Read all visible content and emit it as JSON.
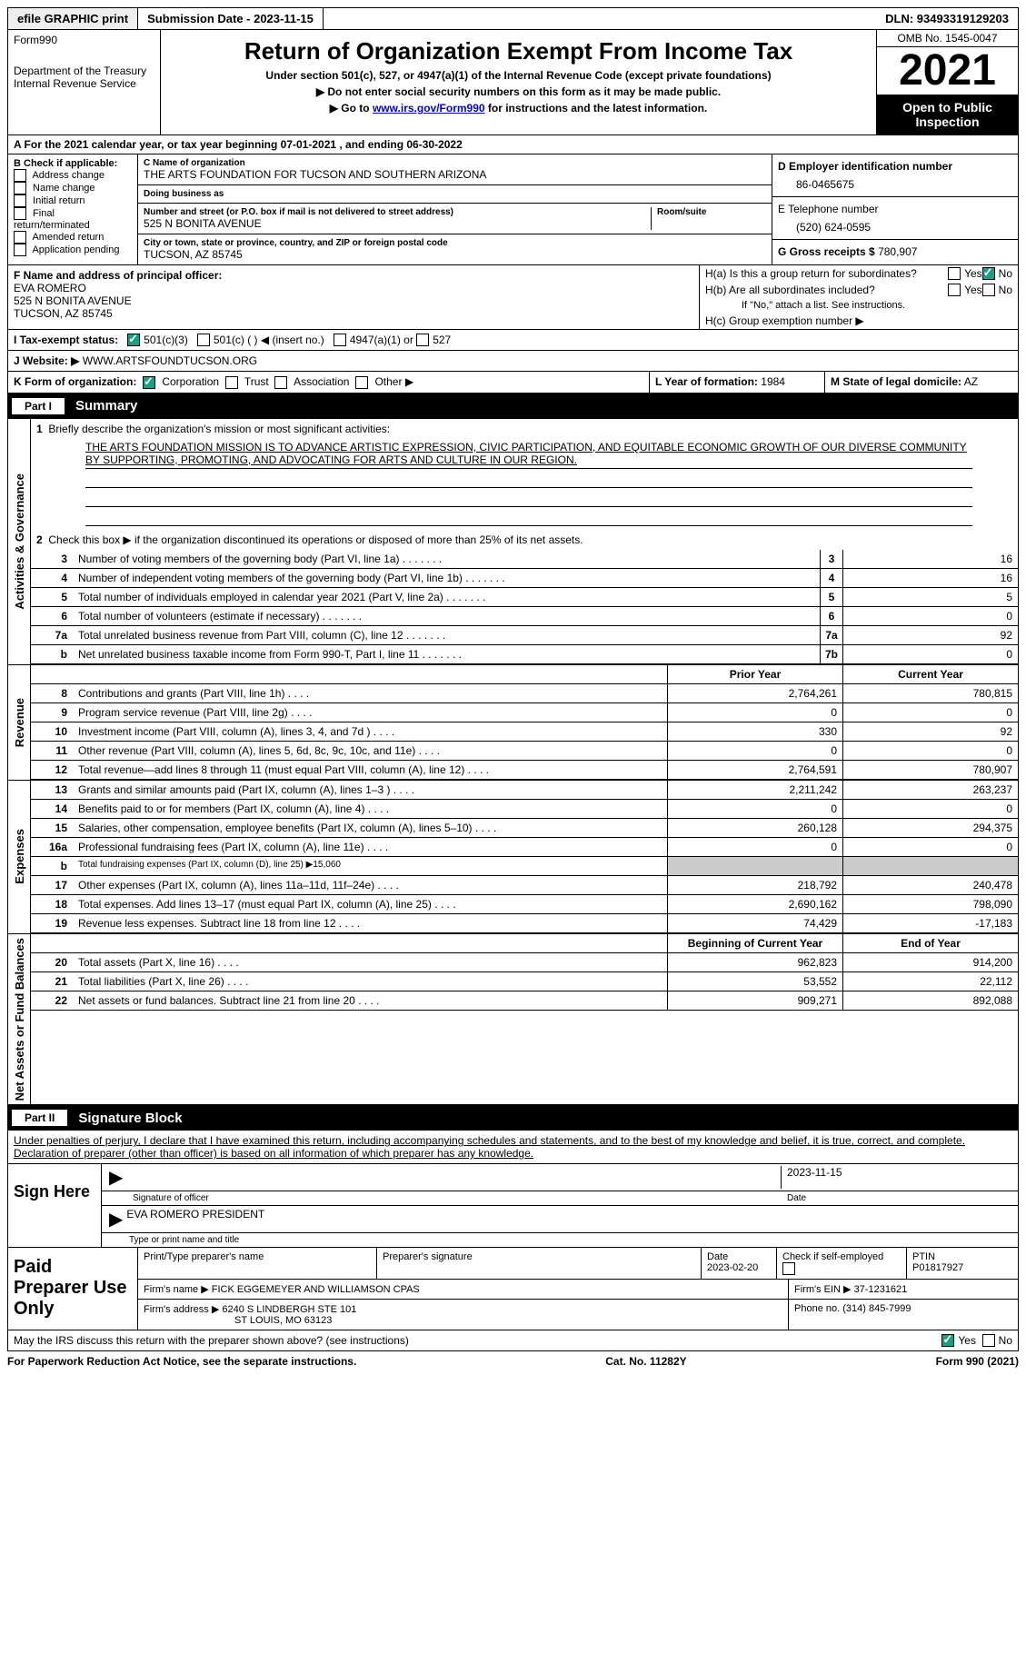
{
  "topbar": {
    "efile": "efile GRAPHIC print",
    "submission": "Submission Date - 2023-11-15",
    "dln": "DLN: 93493319129203"
  },
  "header": {
    "form_prefix": "Form",
    "form_num": "990",
    "dept": "Department of the Treasury",
    "irs": "Internal Revenue Service",
    "title": "Return of Organization Exempt From Income Tax",
    "subtitle": "Under section 501(c), 527, or 4947(a)(1) of the Internal Revenue Code (except private foundations)",
    "note1": "▶ Do not enter social security numbers on this form as it may be made public.",
    "note2_pre": "▶ Go to ",
    "note2_link": "www.irs.gov/Form990",
    "note2_post": " for instructions and the latest information.",
    "omb": "OMB No. 1545-0047",
    "year": "2021",
    "open": "Open to Public Inspection"
  },
  "period": "A For the 2021 calendar year, or tax year beginning 07-01-2021    , and ending 06-30-2022",
  "checks": {
    "b_label": "B Check if applicable:",
    "items": [
      "Address change",
      "Name change",
      "Initial return",
      "Final return/terminated",
      "Amended return",
      "Application pending"
    ]
  },
  "org": {
    "c_label": "C Name of organization",
    "name": "THE ARTS FOUNDATION FOR TUCSON AND SOUTHERN ARIZONA",
    "dba_label": "Doing business as",
    "dba": "",
    "addr_label": "Number and street (or P.O. box if mail is not delivered to street address)",
    "room_label": "Room/suite",
    "addr": "525 N BONITA AVENUE",
    "city_label": "City or town, state or province, country, and ZIP or foreign postal code",
    "city": "TUCSON, AZ  85745"
  },
  "d": {
    "ein_label": "D Employer identification number",
    "ein": "86-0465675",
    "tel_label": "E Telephone number",
    "tel": "(520) 624-0595",
    "g_label": "G Gross receipts $",
    "g": "780,907"
  },
  "f": {
    "label": "F Name and address of principal officer:",
    "name": "EVA ROMERO",
    "addr1": "525 N BONITA AVENUE",
    "addr2": "TUCSON, AZ  85745"
  },
  "h": {
    "a": "H(a)  Is this a group return for subordinates?",
    "b": "H(b)  Are all subordinates included?",
    "note": "If \"No,\" attach a list. See instructions.",
    "c": "H(c)  Group exemption number ▶",
    "yes": "Yes",
    "no": "No"
  },
  "i": {
    "label": "I    Tax-exempt status:",
    "c3": "501(c)(3)",
    "c": "501(c) (   ) ◀ (insert no.)",
    "a": "4947(a)(1) or",
    "527": "527"
  },
  "j": {
    "label": "J    Website: ▶",
    "val": "  WWW.ARTSFOUNDTUCSON.ORG"
  },
  "k": {
    "label": "K Form of organization:",
    "corp": "Corporation",
    "trust": "Trust",
    "assoc": "Association",
    "other": "Other ▶"
  },
  "l": {
    "label": "L Year of formation:",
    "val": "1984"
  },
  "m": {
    "label": "M State of legal domicile:",
    "val": "AZ"
  },
  "parts": {
    "p1": "Part I",
    "p1_title": "Summary",
    "p2": "Part II",
    "p2_title": "Signature Block"
  },
  "tabs": {
    "act": "Activities & Governance",
    "rev": "Revenue",
    "exp": "Expenses",
    "net": "Net Assets or Fund Balances"
  },
  "summary": {
    "line1": "Briefly describe the organization's mission or most significant activities:",
    "mission": "THE ARTS FOUNDATION MISSION IS TO ADVANCE ARTISTIC EXPRESSION, CIVIC PARTICIPATION, AND EQUITABLE ECONOMIC GROWTH OF OUR DIVERSE COMMUNITY BY SUPPORTING, PROMOTING, AND ADVOCATING FOR ARTS AND CULTURE IN OUR REGION.",
    "line2": "Check this box ▶        if the organization discontinued its operations or disposed of more than 25% of its net assets.",
    "rows": [
      {
        "n": "3",
        "t": "Number of voting members of the governing body (Part VI, line 1a)",
        "box": "3",
        "v": "16"
      },
      {
        "n": "4",
        "t": "Number of independent voting members of the governing body (Part VI, line 1b)",
        "box": "4",
        "v": "16"
      },
      {
        "n": "5",
        "t": "Total number of individuals employed in calendar year 2021 (Part V, line 2a)",
        "box": "5",
        "v": "5"
      },
      {
        "n": "6",
        "t": "Total number of volunteers (estimate if necessary)",
        "box": "6",
        "v": "0"
      },
      {
        "n": "7a",
        "t": "Total unrelated business revenue from Part VIII, column (C), line 12",
        "box": "7a",
        "v": "92"
      },
      {
        "n": "b",
        "t": "Net unrelated business taxable income from Form 990-T, Part I, line 11",
        "box": "7b",
        "v": "0"
      }
    ],
    "col_headers": {
      "prior": "Prior Year",
      "current": "Current Year"
    },
    "rev_rows": [
      {
        "n": "8",
        "t": "Contributions and grants (Part VIII, line 1h)",
        "p": "2,764,261",
        "c": "780,815"
      },
      {
        "n": "9",
        "t": "Program service revenue (Part VIII, line 2g)",
        "p": "0",
        "c": "0"
      },
      {
        "n": "10",
        "t": "Investment income (Part VIII, column (A), lines 3, 4, and 7d )",
        "p": "330",
        "c": "92"
      },
      {
        "n": "11",
        "t": "Other revenue (Part VIII, column (A), lines 5, 6d, 8c, 9c, 10c, and 11e)",
        "p": "0",
        "c": "0"
      },
      {
        "n": "12",
        "t": "Total revenue—add lines 8 through 11 (must equal Part VIII, column (A), line 12)",
        "p": "2,764,591",
        "c": "780,907"
      }
    ],
    "exp_rows": [
      {
        "n": "13",
        "t": "Grants and similar amounts paid (Part IX, column (A), lines 1–3 )",
        "p": "2,211,242",
        "c": "263,237"
      },
      {
        "n": "14",
        "t": "Benefits paid to or for members (Part IX, column (A), line 4)",
        "p": "0",
        "c": "0"
      },
      {
        "n": "15",
        "t": "Salaries, other compensation, employee benefits (Part IX, column (A), lines 5–10)",
        "p": "260,128",
        "c": "294,375"
      },
      {
        "n": "16a",
        "t": "Professional fundraising fees (Part IX, column (A), line 11e)",
        "p": "0",
        "c": "0"
      },
      {
        "n": "b",
        "t": "Total fundraising expenses (Part IX, column (D), line 25) ▶15,060",
        "p": "",
        "c": "",
        "gray": true,
        "small": true
      },
      {
        "n": "17",
        "t": "Other expenses (Part IX, column (A), lines 11a–11d, 11f–24e)",
        "p": "218,792",
        "c": "240,478"
      },
      {
        "n": "18",
        "t": "Total expenses. Add lines 13–17 (must equal Part IX, column (A), line 25)",
        "p": "2,690,162",
        "c": "798,090"
      },
      {
        "n": "19",
        "t": "Revenue less expenses. Subtract line 18 from line 12",
        "p": "74,429",
        "c": "-17,183"
      }
    ],
    "net_headers": {
      "begin": "Beginning of Current Year",
      "end": "End of Year"
    },
    "net_rows": [
      {
        "n": "20",
        "t": "Total assets (Part X, line 16)",
        "p": "962,823",
        "c": "914,200"
      },
      {
        "n": "21",
        "t": "Total liabilities (Part X, line 26)",
        "p": "53,552",
        "c": "22,112"
      },
      {
        "n": "22",
        "t": "Net assets or fund balances. Subtract line 21 from line 20",
        "p": "909,271",
        "c": "892,088"
      }
    ]
  },
  "sig": {
    "declaration": "Under penalties of perjury, I declare that I have examined this return, including accompanying schedules and statements, and to the best of my knowledge and belief, it is true, correct, and complete. Declaration of preparer (other than officer) is based on all information of which preparer has any knowledge.",
    "sign_here": "Sign Here",
    "sig_officer": "Signature of officer",
    "date": "Date",
    "date_val": "2023-11-15",
    "name_title": "Type or print name and title",
    "name_val": "EVA ROMERO  PRESIDENT"
  },
  "prep": {
    "label": "Paid Preparer Use Only",
    "print_label": "Print/Type preparer's name",
    "sig_label": "Preparer's signature",
    "date_label": "Date",
    "date_val": "2023-02-20",
    "check_label": "Check         if self-employed",
    "ptin_label": "PTIN",
    "ptin": "P01817927",
    "firm_name_label": "Firm's name    ▶",
    "firm_name": "FICK EGGEMEYER AND WILLIAMSON CPAS",
    "firm_ein_label": "Firm's EIN ▶",
    "firm_ein": "37-1231621",
    "firm_addr_label": "Firm's address ▶",
    "firm_addr1": "6240 S LINDBERGH STE 101",
    "firm_addr2": "ST LOUIS, MO  63123",
    "phone_label": "Phone no.",
    "phone": "(314) 845-7999"
  },
  "irs_discuss": "May the IRS discuss this return with the preparer shown above? (see instructions)",
  "footer": {
    "left": "For Paperwork Reduction Act Notice, see the separate instructions.",
    "mid": "Cat. No. 11282Y",
    "right": "Form 990 (2021)"
  }
}
